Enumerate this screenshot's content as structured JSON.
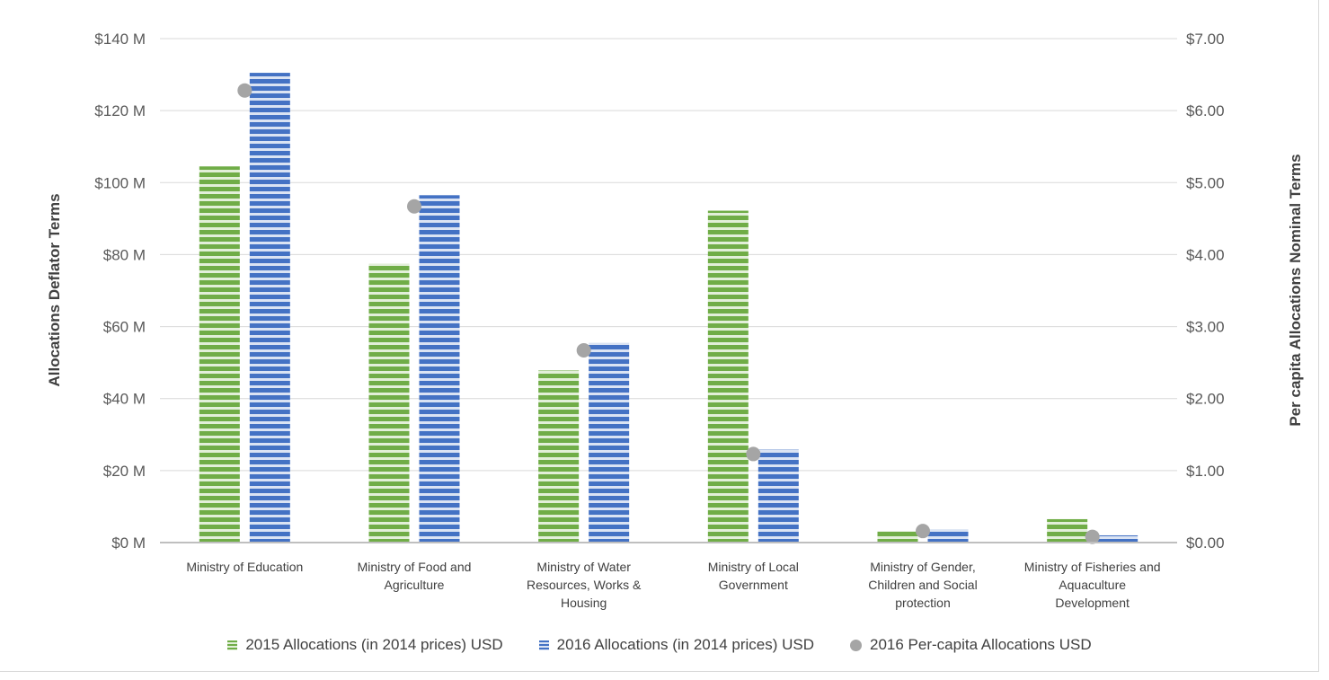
{
  "chart_data": {
    "type": "bar",
    "categories": [
      [
        "Ministry of Education"
      ],
      [
        "Ministry of Food and",
        "Agriculture"
      ],
      [
        "Ministry of Water",
        "Resources, Works &",
        "Housing"
      ],
      [
        "Ministry of Local",
        "Government"
      ],
      [
        "Ministry of Gender,",
        "Children and Social",
        "protection"
      ],
      [
        "Ministry of Fisheries and",
        "Aquaculture",
        "Development"
      ]
    ],
    "series": [
      {
        "name": "2015 Allocations (in 2014 prices) USD",
        "axis": "left",
        "type": "bar",
        "color": "#70ad47",
        "values": [
          104.5,
          77.5,
          47.8,
          92.2,
          3.2,
          6.5
        ]
      },
      {
        "name": "2016 Allocations (in 2014 prices) USD",
        "axis": "left",
        "type": "bar",
        "color": "#4472c4",
        "values": [
          130.5,
          96.5,
          55.5,
          25.8,
          3.7,
          2.0
        ]
      },
      {
        "name": "2016 Per-capita Allocations USD",
        "axis": "right",
        "type": "scatter",
        "color": "#a5a5a5",
        "values": [
          6.28,
          4.67,
          2.67,
          1.23,
          0.16,
          0.08
        ]
      }
    ],
    "ylabel": "Allocations Deflator Terms",
    "y2label": "Per capita Allocations Nominal Terms",
    "ylim": [
      0,
      140
    ],
    "y2lim": [
      0,
      7
    ],
    "yticks": [
      "$0 M",
      "$20 M",
      "$40 M",
      "$60 M",
      "$80 M",
      "$100 M",
      "$120 M",
      "$140 M"
    ],
    "y2ticks": [
      "$0.00",
      "$1.00",
      "$2.00",
      "$3.00",
      "$4.00",
      "$5.00",
      "$6.00",
      "$7.00"
    ],
    "grid": true,
    "legend_position": "bottom"
  }
}
